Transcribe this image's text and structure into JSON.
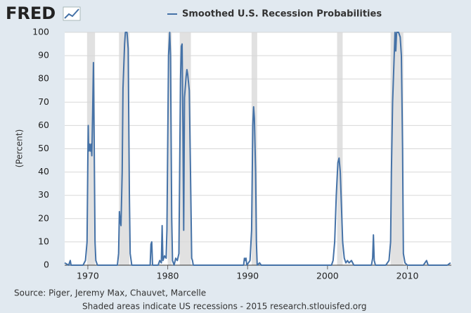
{
  "chart_data": {
    "type": "line",
    "logo": "FRED",
    "ylabel": "(Percent)",
    "source": "Source: Piger, Jeremy Max, Chauvet, Marcelle",
    "note": "Shaded areas indicate US recessions - 2015 research.stlouisfed.org",
    "xlim": [
      1967.1,
      2015.5
    ],
    "xticks": [
      1970,
      1980,
      1990,
      2000,
      2010
    ],
    "ylim": [
      0,
      100
    ],
    "yticks": [
      0,
      10,
      20,
      30,
      40,
      50,
      60,
      70,
      80,
      90,
      100
    ],
    "grid": true,
    "recession_color": "#e1e1e1",
    "recessions": [
      [
        1969.9,
        1970.9
      ],
      [
        1973.9,
        1975.2
      ],
      [
        1980.0,
        1980.5
      ],
      [
        1981.5,
        1982.9
      ],
      [
        1990.5,
        1991.2
      ],
      [
        2001.2,
        2001.9
      ],
      [
        2007.9,
        2009.5
      ]
    ],
    "series": [
      {
        "name": "Smoothed U.S. Recession Probabilities",
        "color": "#4572a7",
        "x": [
          1967.1,
          1967.6,
          1967.8,
          1967.9,
          1969.4,
          1969.7,
          1969.9,
          1970.0,
          1970.05,
          1970.1,
          1970.2,
          1970.3,
          1970.4,
          1970.5,
          1970.6,
          1970.7,
          1970.8,
          1970.9,
          1971.0,
          1971.2,
          1973.7,
          1973.85,
          1973.95,
          1974.05,
          1974.15,
          1974.3,
          1974.4,
          1974.6,
          1974.7,
          1974.9,
          1975.05,
          1975.2,
          1975.3,
          1975.5,
          1977.8,
          1977.9,
          1978.0,
          1978.1,
          1978.8,
          1979.0,
          1979.2,
          1979.3,
          1979.4,
          1979.6,
          1979.8,
          1979.9,
          1980.1,
          1980.25,
          1980.35,
          1980.5,
          1980.6,
          1980.8,
          1981.0,
          1981.2,
          1981.4,
          1981.6,
          1981.7,
          1981.8,
          1981.9,
          1982.0,
          1982.1,
          1982.3,
          1982.4,
          1982.5,
          1982.7,
          1982.85,
          1983.0,
          1983.1,
          1983.2,
          1989.5,
          1989.6,
          1989.7,
          1989.8,
          1989.9,
          1990.3,
          1990.5,
          1990.65,
          1990.75,
          1990.85,
          1991.0,
          1991.1,
          1991.2,
          1991.5,
          1991.7,
          2000.5,
          2000.7,
          2000.9,
          2001.1,
          2001.3,
          2001.45,
          2001.6,
          2001.75,
          2001.9,
          2002.1,
          2002.3,
          2002.5,
          2002.7,
          2003.0,
          2003.3,
          2005.5,
          2005.65,
          2005.75,
          2005.85,
          2006.0,
          2007.3,
          2007.7,
          2007.9,
          2008.0,
          2008.15,
          2008.35,
          2008.45,
          2008.55,
          2008.65,
          2008.9,
          2009.1,
          2009.25,
          2009.4,
          2009.5,
          2009.7,
          2010.0,
          2012.0,
          2012.4,
          2012.6,
          2015.0,
          2015.4
        ],
        "values": [
          1,
          0,
          2,
          0,
          0,
          2,
          10,
          45,
          60,
          49,
          52,
          49,
          52,
          47,
          65,
          87,
          50,
          10,
          2,
          0,
          0,
          5,
          23,
          19,
          17,
          40,
          76,
          95,
          100,
          100,
          93,
          30,
          5,
          0,
          0,
          9,
          10,
          0,
          0,
          2,
          1,
          17,
          2,
          4,
          3,
          15,
          90,
          100,
          90,
          20,
          2,
          0,
          3,
          2,
          5,
          80,
          94,
          95,
          60,
          15,
          72,
          81,
          84,
          82,
          75,
          40,
          3,
          2,
          0,
          0,
          3,
          2,
          3,
          0,
          2,
          15,
          60,
          68,
          63,
          40,
          10,
          0,
          1,
          0,
          0,
          2,
          10,
          30,
          44,
          46,
          40,
          25,
          10,
          3,
          1,
          2,
          1,
          2,
          0,
          0,
          3,
          13,
          2,
          0,
          0,
          2,
          10,
          40,
          70,
          90,
          100,
          92,
          100,
          100,
          98,
          90,
          50,
          5,
          1,
          0,
          0,
          2,
          0,
          0,
          1
        ]
      }
    ]
  }
}
